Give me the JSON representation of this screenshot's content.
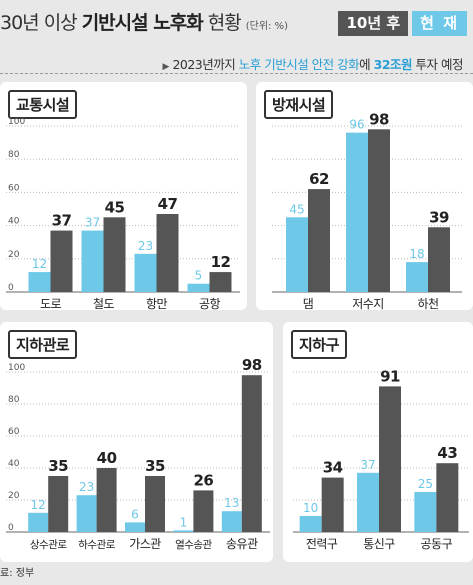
{
  "header": {
    "title_a": "30년 이상 ",
    "title_b": "기반시설 노후화",
    "title_c": " 현황",
    "unit": "(단위: %)",
    "legend_after": "10년 후",
    "legend_now": "현 재",
    "note_pre": "2023년까지 ",
    "note_hl": "노후 기반시설 안전 강화",
    "note_mid": "에 ",
    "note_big": "32조원",
    "note_post": " 투자 예정"
  },
  "colors": {
    "now": "#6ec9e8",
    "after": "#555555",
    "now_label": "#6ec9e8",
    "after_label": "#222222"
  },
  "source": "료: 정부",
  "chart_data": [
    {
      "type": "bar",
      "title": "교통시설",
      "categories": [
        "도로",
        "철도",
        "항만",
        "공항"
      ],
      "series": [
        {
          "name": "현 재",
          "values": [
            12,
            37,
            23,
            5
          ]
        },
        {
          "name": "10년 후",
          "values": [
            37,
            45,
            47,
            12
          ]
        }
      ],
      "yticks": [
        0,
        20,
        40,
        60,
        80,
        100
      ],
      "ylim": [
        0,
        100
      ]
    },
    {
      "type": "bar",
      "title": "방재시설",
      "categories": [
        "댐",
        "저수지",
        "하천"
      ],
      "series": [
        {
          "name": "현 재",
          "values": [
            45,
            96,
            18
          ]
        },
        {
          "name": "10년 후",
          "values": [
            62,
            98,
            39
          ]
        }
      ],
      "yticks": [],
      "ylim": [
        0,
        100
      ]
    },
    {
      "type": "bar",
      "title": "지하관로",
      "categories": [
        "상수관로",
        "하수관로",
        "가스관",
        "열수송관",
        "송유관"
      ],
      "series": [
        {
          "name": "현 재",
          "values": [
            12,
            23,
            6,
            1,
            13
          ]
        },
        {
          "name": "10년 후",
          "values": [
            35,
            40,
            35,
            26,
            98
          ]
        }
      ],
      "yticks": [
        0,
        20,
        40,
        60,
        80,
        100
      ],
      "ylim": [
        0,
        100
      ]
    },
    {
      "type": "bar",
      "title": "지하구",
      "categories": [
        "전력구",
        "통신구",
        "공동구"
      ],
      "series": [
        {
          "name": "현 재",
          "values": [
            10,
            37,
            25
          ]
        },
        {
          "name": "10년 후",
          "values": [
            34,
            91,
            43
          ]
        }
      ],
      "yticks": [],
      "ylim": [
        0,
        100
      ]
    }
  ]
}
